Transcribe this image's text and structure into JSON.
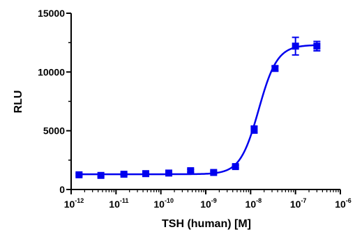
{
  "chart_data": {
    "type": "scatter",
    "xlabel": "TSH (human) [M]",
    "ylabel": "RLU",
    "x_scale": "log",
    "xlim": [
      1e-12,
      1e-06
    ],
    "ylim": [
      0,
      15000
    ],
    "y_ticks": [
      "0",
      "5000",
      "10000",
      "15000"
    ],
    "x_ticks": [
      {
        "base": "10",
        "exp": "-12",
        "value": 1e-12
      },
      {
        "base": "10",
        "exp": "-11",
        "value": 1e-11
      },
      {
        "base": "10",
        "exp": "-10",
        "value": 1e-10
      },
      {
        "base": "10",
        "exp": "-9",
        "value": 1e-09
      },
      {
        "base": "10",
        "exp": "-8",
        "value": 1e-08
      },
      {
        "base": "10",
        "exp": "-7",
        "value": 1e-07
      },
      {
        "base": "10",
        "exp": "-6",
        "value": 1e-06
      }
    ],
    "grid": false,
    "color": "#0000ee",
    "series": [
      {
        "points": [
          {
            "x": 1.5e-12,
            "y": 1250,
            "err": 100
          },
          {
            "x": 4.6e-12,
            "y": 1200,
            "err": 100
          },
          {
            "x": 1.5e-11,
            "y": 1300,
            "err": 100
          },
          {
            "x": 4.6e-11,
            "y": 1350,
            "err": 100
          },
          {
            "x": 1.5e-10,
            "y": 1400,
            "err": 100
          },
          {
            "x": 4.6e-10,
            "y": 1600,
            "err": 120
          },
          {
            "x": 1.5e-09,
            "y": 1450,
            "err": 100
          },
          {
            "x": 4.6e-09,
            "y": 1950,
            "err": 120
          },
          {
            "x": 1.2e-08,
            "y": 5100,
            "err": 300
          },
          {
            "x": 3.5e-08,
            "y": 10300,
            "err": 200
          },
          {
            "x": 1e-07,
            "y": 12200,
            "err": 750
          },
          {
            "x": 3e-07,
            "y": 12200,
            "err": 400
          }
        ],
        "fit": {
          "bottom": 1300,
          "top": 12300,
          "logEC50": -7.82,
          "hill": 2.1
        }
      }
    ]
  }
}
